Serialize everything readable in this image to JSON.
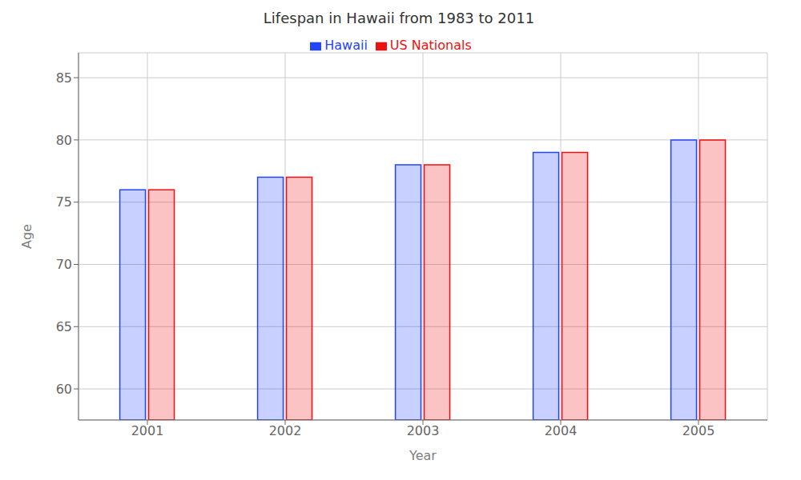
{
  "chart_data": {
    "type": "bar",
    "title": "Lifespan in Hawaii from 1983 to 2011",
    "x_label": "Year",
    "y_label": "Age",
    "categories": [
      2001,
      2002,
      2003,
      2004,
      2005
    ],
    "series": [
      {
        "name": "Hawaii",
        "color": "#2244ff",
        "values": [
          76.0,
          77.0,
          78.0,
          79.0,
          80.0
        ]
      },
      {
        "name": "US Nationals",
        "color": "#ee1111",
        "values": [
          76.0,
          77.0,
          78.0,
          79.0,
          80.0
        ]
      }
    ],
    "ylim": [
      57.5,
      87
    ],
    "yticks": [
      60,
      65,
      70,
      75,
      80,
      85
    ],
    "grid": true,
    "legend": "top"
  }
}
